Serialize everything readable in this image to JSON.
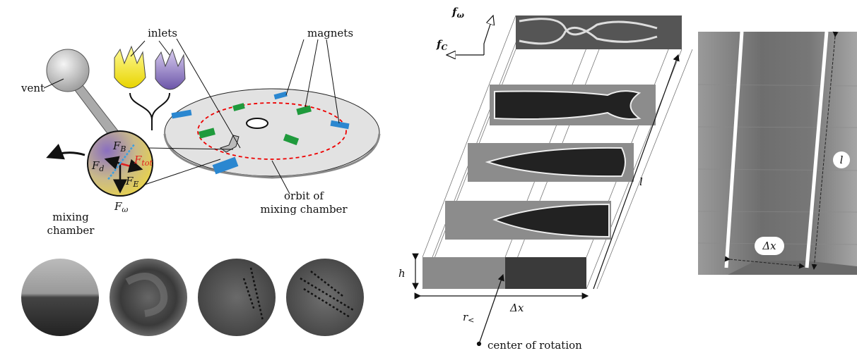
{
  "left": {
    "inlets": "inlets",
    "vent": "vent",
    "magnets": "magnets",
    "forces": {
      "b": {
        "base": "F",
        "sub": "B"
      },
      "d": {
        "base": "F",
        "sub": "d"
      },
      "tot": {
        "base": "F",
        "sub": "tot"
      },
      "e": {
        "base": "F",
        "sub": "E"
      },
      "omega": {
        "base": "F",
        "sub": "ω"
      }
    },
    "mixing_chamber": [
      "mixing",
      "chamber"
    ],
    "orbit": [
      "orbit of",
      "mixing chamber"
    ]
  },
  "middle": {
    "f_omega": {
      "base": "f",
      "sub": "ω"
    },
    "f_c": {
      "base": "f",
      "sub": "C"
    },
    "l": "l",
    "h": "h",
    "dx": "Δx",
    "r": {
      "base": "r",
      "sub": "<"
    },
    "center": "center of rotation"
  },
  "right": {
    "l": "l",
    "dx": "Δx"
  }
}
